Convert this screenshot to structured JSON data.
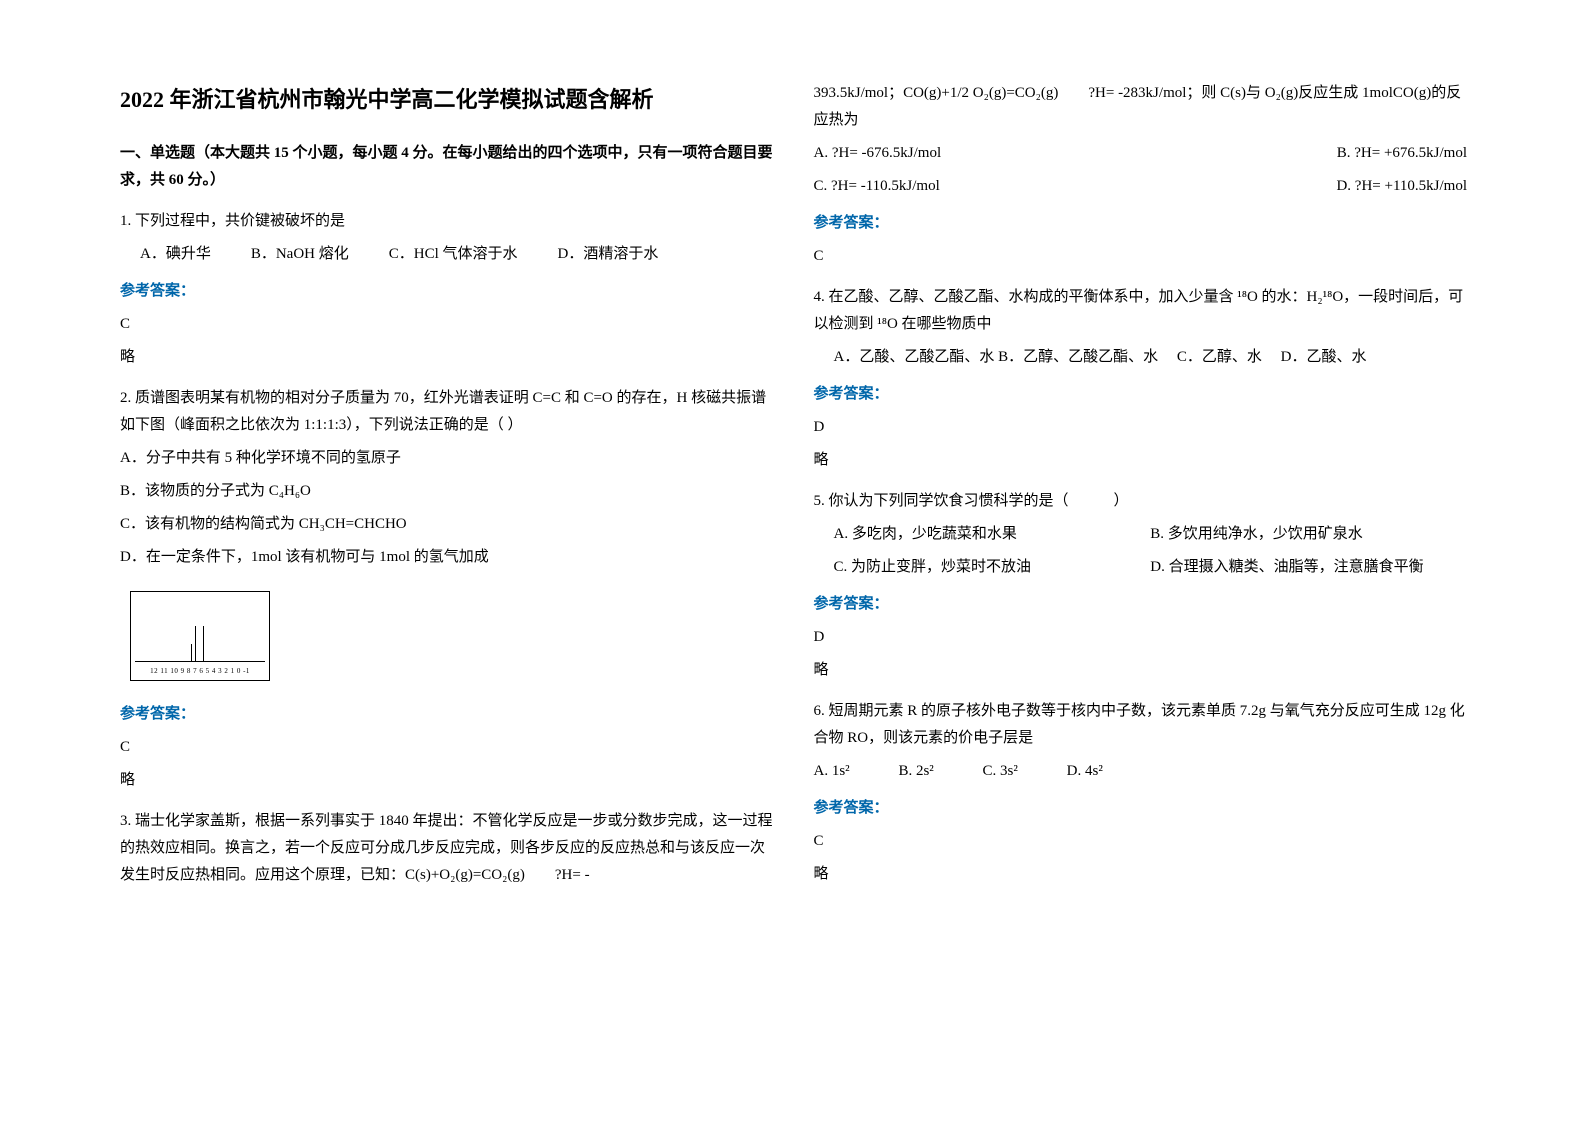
{
  "title": "2022 年浙江省杭州市翰光中学高二化学模拟试题含解析",
  "section1_header": "一、单选题（本大题共 15 个小题，每小题 4 分。在每小题给出的四个选项中，只有一项符合题目要求，共 60 分。）",
  "q1": {
    "text": "1. 下列过程中，共价键被破坏的是",
    "optA": "A．碘升华",
    "optB": "B．NaOH 熔化",
    "optC": "C．HCl 气体溶于水",
    "optD": "D．酒精溶于水",
    "answer_label": "参考答案：",
    "answer": "C",
    "note": "略"
  },
  "q2": {
    "text": "2. 质谱图表明某有机物的相对分子质量为 70，红外光谱表证明 C=C 和 C=O 的存在，H 核磁共振谱如下图（峰面积之比依次为 1:1:1:3），下列说法正确的是（  ）",
    "optA": "A．分子中共有 5 种化学环境不同的氢原子",
    "optB": "B．该物质的分子式为 C₄H₆O",
    "optC": "C．该有机物的结构简式为 CH₃CH=CHCHO",
    "optD": "D．在一定条件下，1mol 该有机物可与 1mol 的氢气加成",
    "nmr_axis": "12 11 10 9 8 7 6 5 4 3 2 1 0 -1",
    "answer_label": "参考答案：",
    "answer": "C",
    "note": "略"
  },
  "q3": {
    "text_part1": "3. 瑞士化学家盖斯，根据一系列事实于 1840 年提出：不管化学反应是一步或分数步完成，这一过程的热效应相同。换言之，若一个反应可分成几步反应完成，则各步反应的反应热总和与该反应一次发生时反应热相同。应用这个原理，已知：C(s)+O₂(g)=CO₂(g)　　?H= -",
    "text_part2": "393.5kJ/mol；CO(g)+1/2 O₂(g)=CO₂(g)　　?H= -283kJ/mol；则 C(s)与 O₂(g)反应生成 1molCO(g)的反应热为",
    "optA": "A. ?H= -676.5kJ/mol",
    "optB": "B. ?H= +676.5kJ/mol",
    "optC": "C. ?H= -110.5kJ/mol",
    "optD": "D. ?H= +110.5kJ/mol",
    "answer_label": "参考答案：",
    "answer": "C"
  },
  "q4": {
    "text": "4. 在乙酸、乙醇、乙酸乙酯、水构成的平衡体系中，加入少量含 ¹⁸O 的水：H₂¹⁸O，一段时间后，可以检测到 ¹⁸O 在哪些物质中",
    "optA": "A．乙酸、乙酸乙酯、水",
    "optB": "B．乙醇、乙酸乙酯、水",
    "optC": "C．乙醇、水",
    "optD": "D．乙酸、水",
    "answer_label": "参考答案：",
    "answer": "D",
    "note": "略"
  },
  "q5": {
    "text": "5. 你认为下列同学饮食习惯科学的是（　　　）",
    "optA": "A. 多吃肉，少吃蔬菜和水果",
    "optB": "B. 多饮用纯净水，少饮用矿泉水",
    "optC": "C. 为防止变胖，炒菜时不放油",
    "optD": "D. 合理摄入糖类、油脂等，注意膳食平衡",
    "answer_label": "参考答案：",
    "answer": "D",
    "note": "略"
  },
  "q6": {
    "text": "6. 短周期元素 R 的原子核外电子数等于核内中子数，该元素单质 7.2g 与氧气充分反应可生成 12g 化合物 RO，则该元素的价电子层是",
    "optA": "A. 1s²",
    "optB": "B. 2s²",
    "optC": "C. 3s²",
    "optD": "D. 4s²",
    "answer_label": "参考答案：",
    "answer": "C",
    "note": "略"
  }
}
